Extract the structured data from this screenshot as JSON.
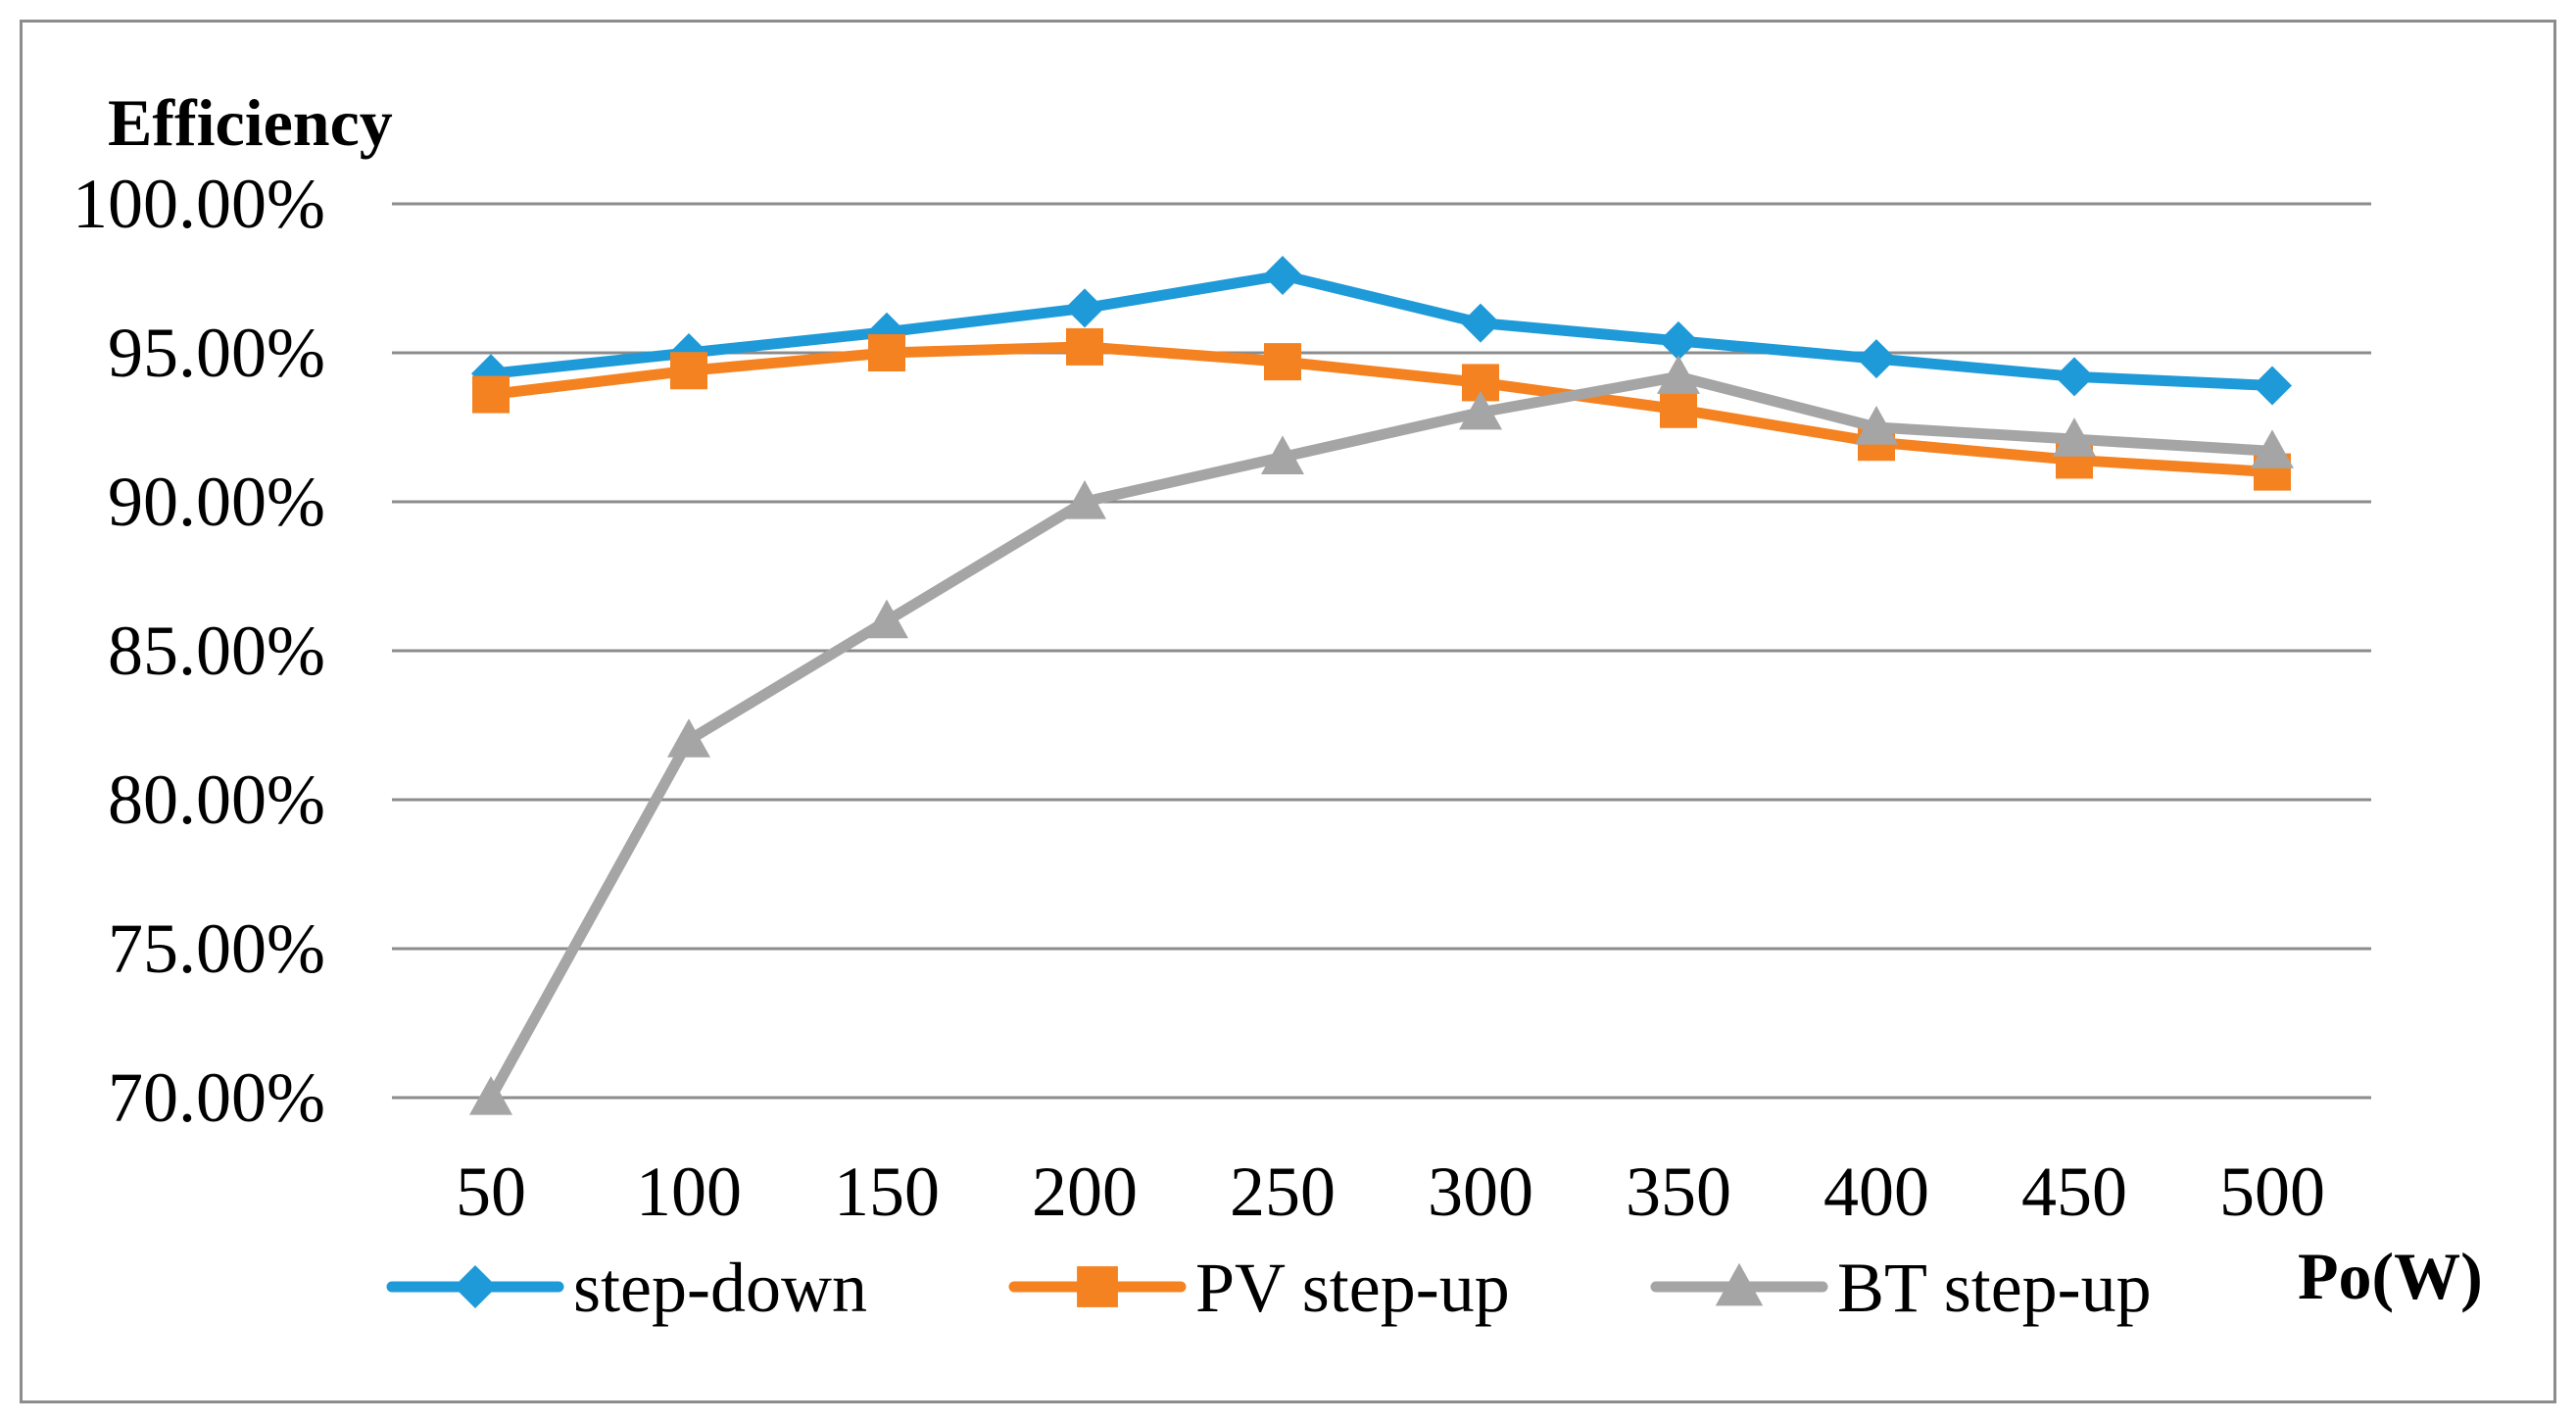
{
  "chart_data": {
    "type": "line",
    "title": "",
    "ylabel": "Efficiency",
    "xlabel": "Po(W)",
    "categories": [
      "50",
      "100",
      "150",
      "200",
      "250",
      "300",
      "350",
      "400",
      "450",
      "500"
    ],
    "ylim": [
      70,
      100
    ],
    "yticks": [
      {
        "value": 100,
        "label": "100.00%"
      },
      {
        "value": 95,
        "label": "95.00%"
      },
      {
        "value": 90,
        "label": "90.00%"
      },
      {
        "value": 85,
        "label": "85.00%"
      },
      {
        "value": 80,
        "label": "80.00%"
      },
      {
        "value": 75,
        "label": "75.00%"
      },
      {
        "value": 70,
        "label": "70.00%"
      }
    ],
    "grid": true,
    "legend_position": "bottom",
    "series": [
      {
        "name": "step-down",
        "color": "#1f9ad8",
        "marker": "diamond",
        "values": [
          94.3,
          95.0,
          95.7,
          96.5,
          97.6,
          96.0,
          95.4,
          94.8,
          94.2,
          93.9
        ]
      },
      {
        "name": "PV step-up",
        "color": "#f58220",
        "marker": "square",
        "values": [
          93.6,
          94.4,
          95.0,
          95.2,
          94.7,
          94.0,
          93.1,
          92.0,
          91.4,
          91.0
        ]
      },
      {
        "name": "BT step-up",
        "color": "#a5a5a5",
        "marker": "triangle",
        "values": [
          70.0,
          82.0,
          86.0,
          90.0,
          91.5,
          93.0,
          94.2,
          92.5,
          92.1,
          91.7
        ]
      }
    ]
  }
}
